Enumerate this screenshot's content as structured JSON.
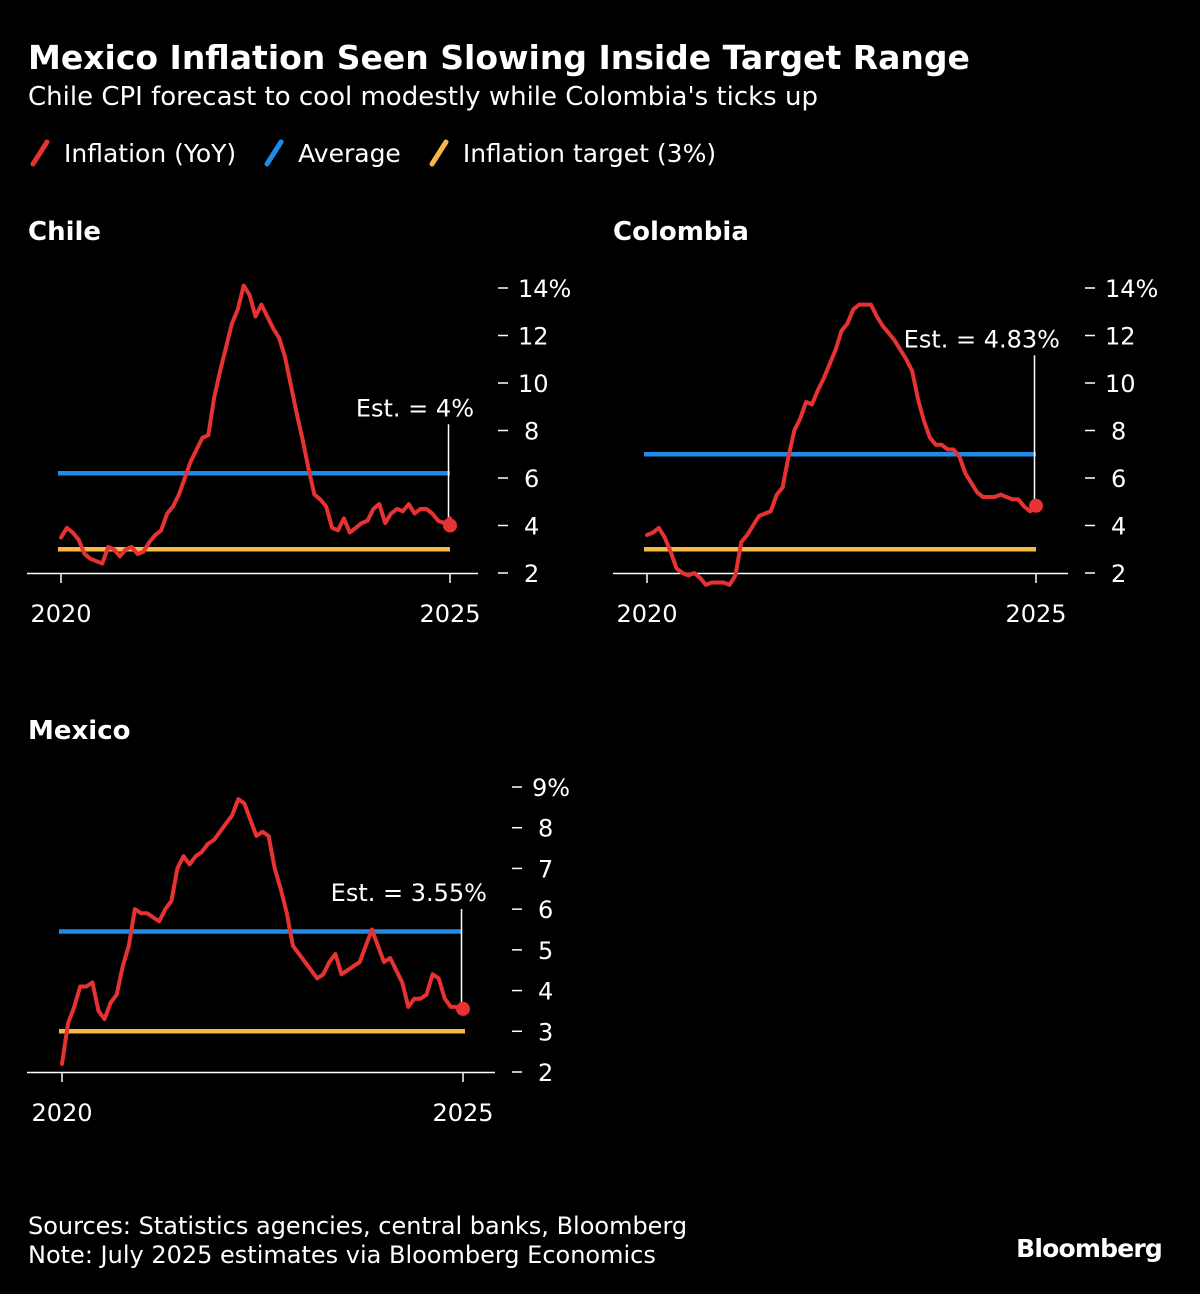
{
  "header": {
    "title": "Mexico Inflation Seen Slowing Inside Target Range",
    "subtitle": "Chile CPI forecast to cool modestly while Colombia's ticks up"
  },
  "legend": [
    {
      "label": "Inflation (YoY)",
      "color": "#e63232"
    },
    {
      "label": "Average",
      "color": "#1e8be6"
    },
    {
      "label": "Inflation target (3%)",
      "color": "#f5b748"
    }
  ],
  "colors": {
    "background": "#000000",
    "inflation": "#e63232",
    "average": "#1e8be6",
    "target": "#f5b748",
    "text": "#ffffff"
  },
  "footer": {
    "sources": "Sources: Statistics agencies, central banks, Bloomberg",
    "note": "Note: July 2025 estimates via Bloomberg Economics",
    "brand": "Bloomberg"
  },
  "chart_data": [
    {
      "type": "line",
      "title": "Chile",
      "x_start": "2020-01",
      "x_end": "2025-07",
      "xticks": [
        "2020",
        "2025"
      ],
      "yticks": [
        2,
        4,
        6,
        8,
        10,
        12,
        14
      ],
      "ytick_labels": [
        "2",
        "4",
        "6",
        "8",
        "10",
        "12",
        "14%"
      ],
      "ylim": [
        2,
        14
      ],
      "average": 6.2,
      "target": 3,
      "estimate": {
        "value": 4,
        "label": "Est. = 4%"
      },
      "series": [
        {
          "values": [
            3.5,
            3.9,
            3.7,
            3.4,
            2.8,
            2.6,
            2.5,
            2.4,
            3.1,
            3.0,
            2.7,
            3.0,
            3.1,
            2.8,
            2.9,
            3.3,
            3.6,
            3.8,
            4.5,
            4.8,
            5.3,
            6.0,
            6.7,
            7.2,
            7.7,
            7.8,
            9.4,
            10.5,
            11.5,
            12.5,
            13.1,
            14.1,
            13.7,
            12.8,
            13.3,
            12.8,
            12.3,
            11.9,
            11.1,
            9.9,
            8.7,
            7.6,
            6.4,
            5.3,
            5.1,
            4.8,
            3.9,
            3.8,
            4.3,
            3.7,
            3.9,
            4.1,
            4.2,
            4.7,
            4.9,
            4.1,
            4.5,
            4.7,
            4.6,
            4.9,
            4.5,
            4.7,
            4.7,
            4.5,
            4.2,
            4.1,
            4.3
          ]
        }
      ]
    },
    {
      "type": "line",
      "title": "Colombia",
      "x_start": "2020-01",
      "x_end": "2025-07",
      "xticks": [
        "2020",
        "2025"
      ],
      "yticks": [
        2,
        4,
        6,
        8,
        10,
        12,
        14
      ],
      "ytick_labels": [
        "2",
        "4",
        "6",
        "8",
        "10",
        "12",
        "14%"
      ],
      "ylim": [
        2,
        14
      ],
      "average": 7,
      "target": 3,
      "estimate": {
        "value": 4.83,
        "label": "Est. = 4.83%"
      },
      "series": [
        {
          "values": [
            3.6,
            3.7,
            3.9,
            3.5,
            2.9,
            2.2,
            2.0,
            1.9,
            2.0,
            1.8,
            1.5,
            1.6,
            1.6,
            1.6,
            1.5,
            1.9,
            3.3,
            3.6,
            4.0,
            4.4,
            4.5,
            4.6,
            5.3,
            5.6,
            6.9,
            8.0,
            8.5,
            9.2,
            9.1,
            9.7,
            10.2,
            10.8,
            11.4,
            12.2,
            12.5,
            13.1,
            13.3,
            13.3,
            13.3,
            12.8,
            12.4,
            12.1,
            11.8,
            11.4,
            11.0,
            10.5,
            9.3,
            8.4,
            7.7,
            7.4,
            7.4,
            7.2,
            7.2,
            6.9,
            6.2,
            5.8,
            5.4,
            5.2,
            5.2,
            5.2,
            5.3,
            5.2,
            5.1,
            5.1,
            4.8,
            4.6,
            4.83
          ]
        }
      ]
    },
    {
      "type": "line",
      "title": "Mexico",
      "x_start": "2020-01",
      "x_end": "2025-07",
      "xticks": [
        "2020",
        "2025"
      ],
      "yticks": [
        2,
        3,
        4,
        5,
        6,
        7,
        8,
        9
      ],
      "ytick_labels": [
        "2",
        "3",
        "4",
        "5",
        "6",
        "7",
        "8",
        "9%"
      ],
      "ylim": [
        2,
        9
      ],
      "average": 5.45,
      "target": 3,
      "estimate": {
        "value": 3.55,
        "label": "Est. = 3.55%"
      },
      "series": [
        {
          "values": [
            2.2,
            3.2,
            3.6,
            4.1,
            4.1,
            4.2,
            3.5,
            3.3,
            3.7,
            3.9,
            4.6,
            5.1,
            6.0,
            5.9,
            5.9,
            5.8,
            5.7,
            6.0,
            6.2,
            7.0,
            7.3,
            7.1,
            7.3,
            7.4,
            7.6,
            7.7,
            7.9,
            8.1,
            8.3,
            8.7,
            8.6,
            8.2,
            7.8,
            7.9,
            7.8,
            7.0,
            6.5,
            5.9,
            5.1,
            4.9,
            4.7,
            4.5,
            4.3,
            4.4,
            4.7,
            4.9,
            4.4,
            4.5,
            4.6,
            4.7,
            5.1,
            5.5,
            5.1,
            4.7,
            4.8,
            4.5,
            4.2,
            3.6,
            3.8,
            3.8,
            3.9,
            4.4,
            4.3,
            3.8,
            3.6,
            3.6,
            3.55
          ]
        }
      ]
    }
  ]
}
